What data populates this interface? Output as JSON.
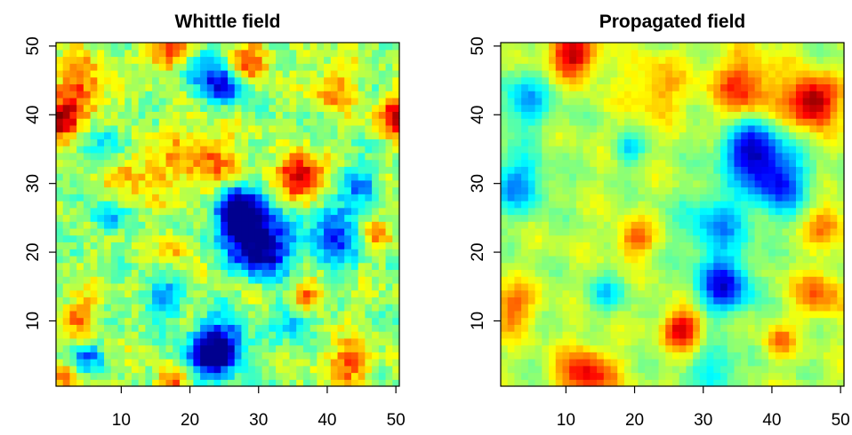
{
  "chart_data": [
    {
      "type": "heatmap",
      "title": "Whittle field",
      "xlabel": "",
      "ylabel": "",
      "grid_size": 50,
      "xlim": [
        0.5,
        50.5
      ],
      "ylim": [
        0.5,
        50.5
      ],
      "x_ticks": [
        10,
        20,
        30,
        40,
        50
      ],
      "y_ticks": [
        10,
        20,
        30,
        40,
        50
      ],
      "x_tick_labels": [
        "10",
        "20",
        "30",
        "40",
        "50"
      ],
      "y_tick_labels": [
        "10",
        "20",
        "30",
        "40",
        "50"
      ],
      "colormap": [
        "#00008f",
        "#0000ff",
        "#0080ff",
        "#00ffff",
        "#80ff80",
        "#ffff00",
        "#ff8000",
        "#ff0000",
        "#800000"
      ],
      "value_range": [
        -1,
        1
      ],
      "base_value": 0.05,
      "features": [
        {
          "x": 36,
          "y": 31,
          "value": 0.95,
          "radius": 2.2
        },
        {
          "x": 1,
          "y": 39,
          "value": 0.85,
          "radius": 1.8
        },
        {
          "x": 50,
          "y": 40,
          "value": 0.85,
          "radius": 1.8
        },
        {
          "x": 17,
          "y": 49,
          "value": 0.75,
          "radius": 2.0
        },
        {
          "x": 4,
          "y": 44,
          "value": 0.55,
          "radius": 3.0
        },
        {
          "x": 29,
          "y": 48,
          "value": 0.55,
          "radius": 2.0
        },
        {
          "x": 41,
          "y": 44,
          "value": 0.45,
          "radius": 2.2
        },
        {
          "x": 22,
          "y": 33,
          "value": 0.45,
          "radius": 4.0
        },
        {
          "x": 12,
          "y": 32,
          "value": 0.35,
          "radius": 3.0
        },
        {
          "x": 37,
          "y": 14,
          "value": 0.5,
          "radius": 1.6
        },
        {
          "x": 4,
          "y": 11,
          "value": 0.4,
          "radius": 2.2
        },
        {
          "x": 43,
          "y": 4,
          "value": 0.5,
          "radius": 2.5
        },
        {
          "x": 17,
          "y": 1,
          "value": 0.55,
          "radius": 1.5
        },
        {
          "x": 1,
          "y": 2,
          "value": 0.4,
          "radius": 1.5
        },
        {
          "x": 18,
          "y": 21,
          "value": 0.4,
          "radius": 1.4
        },
        {
          "x": 47,
          "y": 22,
          "value": 0.35,
          "radius": 1.6
        },
        {
          "x": 27,
          "y": 26,
          "value": -0.95,
          "radius": 2.6
        },
        {
          "x": 29,
          "y": 23,
          "value": -0.7,
          "radius": 3.5
        },
        {
          "x": 31,
          "y": 20,
          "value": -0.75,
          "radius": 2.5
        },
        {
          "x": 23,
          "y": 5,
          "value": -0.9,
          "radius": 2.5
        },
        {
          "x": 25,
          "y": 7,
          "value": -0.6,
          "radius": 2.6
        },
        {
          "x": 25,
          "y": 44,
          "value": -0.75,
          "radius": 2.0
        },
        {
          "x": 21,
          "y": 47,
          "value": -0.45,
          "radius": 2.5
        },
        {
          "x": 41,
          "y": 21,
          "value": -0.6,
          "radius": 2.5
        },
        {
          "x": 41,
          "y": 25,
          "value": -0.45,
          "radius": 2.0
        },
        {
          "x": 8,
          "y": 25,
          "value": -0.55,
          "radius": 1.5
        },
        {
          "x": 5,
          "y": 5,
          "value": -0.55,
          "radius": 1.5
        },
        {
          "x": 16,
          "y": 13,
          "value": -0.5,
          "radius": 2.0
        },
        {
          "x": 45,
          "y": 30,
          "value": -0.5,
          "radius": 2.0
        },
        {
          "x": 9,
          "y": 36,
          "value": -0.4,
          "radius": 2.0
        },
        {
          "x": 35,
          "y": 10,
          "value": -0.4,
          "radius": 2.0
        }
      ]
    },
    {
      "type": "heatmap",
      "title": "Propagated field",
      "xlabel": "",
      "ylabel": "",
      "grid_size": 50,
      "xlim": [
        0.5,
        50.5
      ],
      "ylim": [
        0.5,
        50.5
      ],
      "x_ticks": [
        10,
        20,
        30,
        40,
        50
      ],
      "y_ticks": [
        10,
        20,
        30,
        40,
        50
      ],
      "x_tick_labels": [
        "10",
        "20",
        "30",
        "40",
        "50"
      ],
      "y_tick_labels": [
        "10",
        "20",
        "30",
        "40",
        "50"
      ],
      "colormap": [
        "#00008f",
        "#0000ff",
        "#0080ff",
        "#00ffff",
        "#80ff80",
        "#ffff00",
        "#ff8000",
        "#ff0000",
        "#800000"
      ],
      "value_range": [
        -1,
        1
      ],
      "base_value": 0.1,
      "features": [
        {
          "x": 46,
          "y": 42,
          "value": 0.95,
          "radius": 2.5
        },
        {
          "x": 11,
          "y": 49,
          "value": 0.8,
          "radius": 2.5
        },
        {
          "x": 27,
          "y": 9,
          "value": 0.75,
          "radius": 2.0
        },
        {
          "x": 13,
          "y": 2,
          "value": 0.7,
          "radius": 2.8
        },
        {
          "x": 36,
          "y": 44,
          "value": 0.55,
          "radius": 3.5
        },
        {
          "x": 47,
          "y": 14,
          "value": 0.45,
          "radius": 2.5
        },
        {
          "x": 2,
          "y": 12,
          "value": 0.45,
          "radius": 2.5
        },
        {
          "x": 48,
          "y": 24,
          "value": 0.45,
          "radius": 2.0
        },
        {
          "x": 41,
          "y": 7,
          "value": 0.4,
          "radius": 1.6
        },
        {
          "x": 20,
          "y": 22,
          "value": 0.45,
          "radius": 2.0
        },
        {
          "x": 23,
          "y": 44,
          "value": 0.35,
          "radius": 3.0
        },
        {
          "x": 37,
          "y": 35,
          "value": -0.95,
          "radius": 3.0
        },
        {
          "x": 41,
          "y": 30,
          "value": -0.75,
          "radius": 3.0
        },
        {
          "x": 33,
          "y": 15,
          "value": -0.85,
          "radius": 2.8
        },
        {
          "x": 32,
          "y": 24,
          "value": -0.5,
          "radius": 3.5
        },
        {
          "x": 3,
          "y": 30,
          "value": -0.55,
          "radius": 3.0
        },
        {
          "x": 4,
          "y": 42,
          "value": -0.45,
          "radius": 3.0
        },
        {
          "x": 19,
          "y": 35,
          "value": -0.4,
          "radius": 1.5
        },
        {
          "x": 16,
          "y": 14,
          "value": -0.35,
          "radius": 2.0
        },
        {
          "x": 32,
          "y": 3,
          "value": -0.4,
          "radius": 2.5
        }
      ]
    }
  ]
}
